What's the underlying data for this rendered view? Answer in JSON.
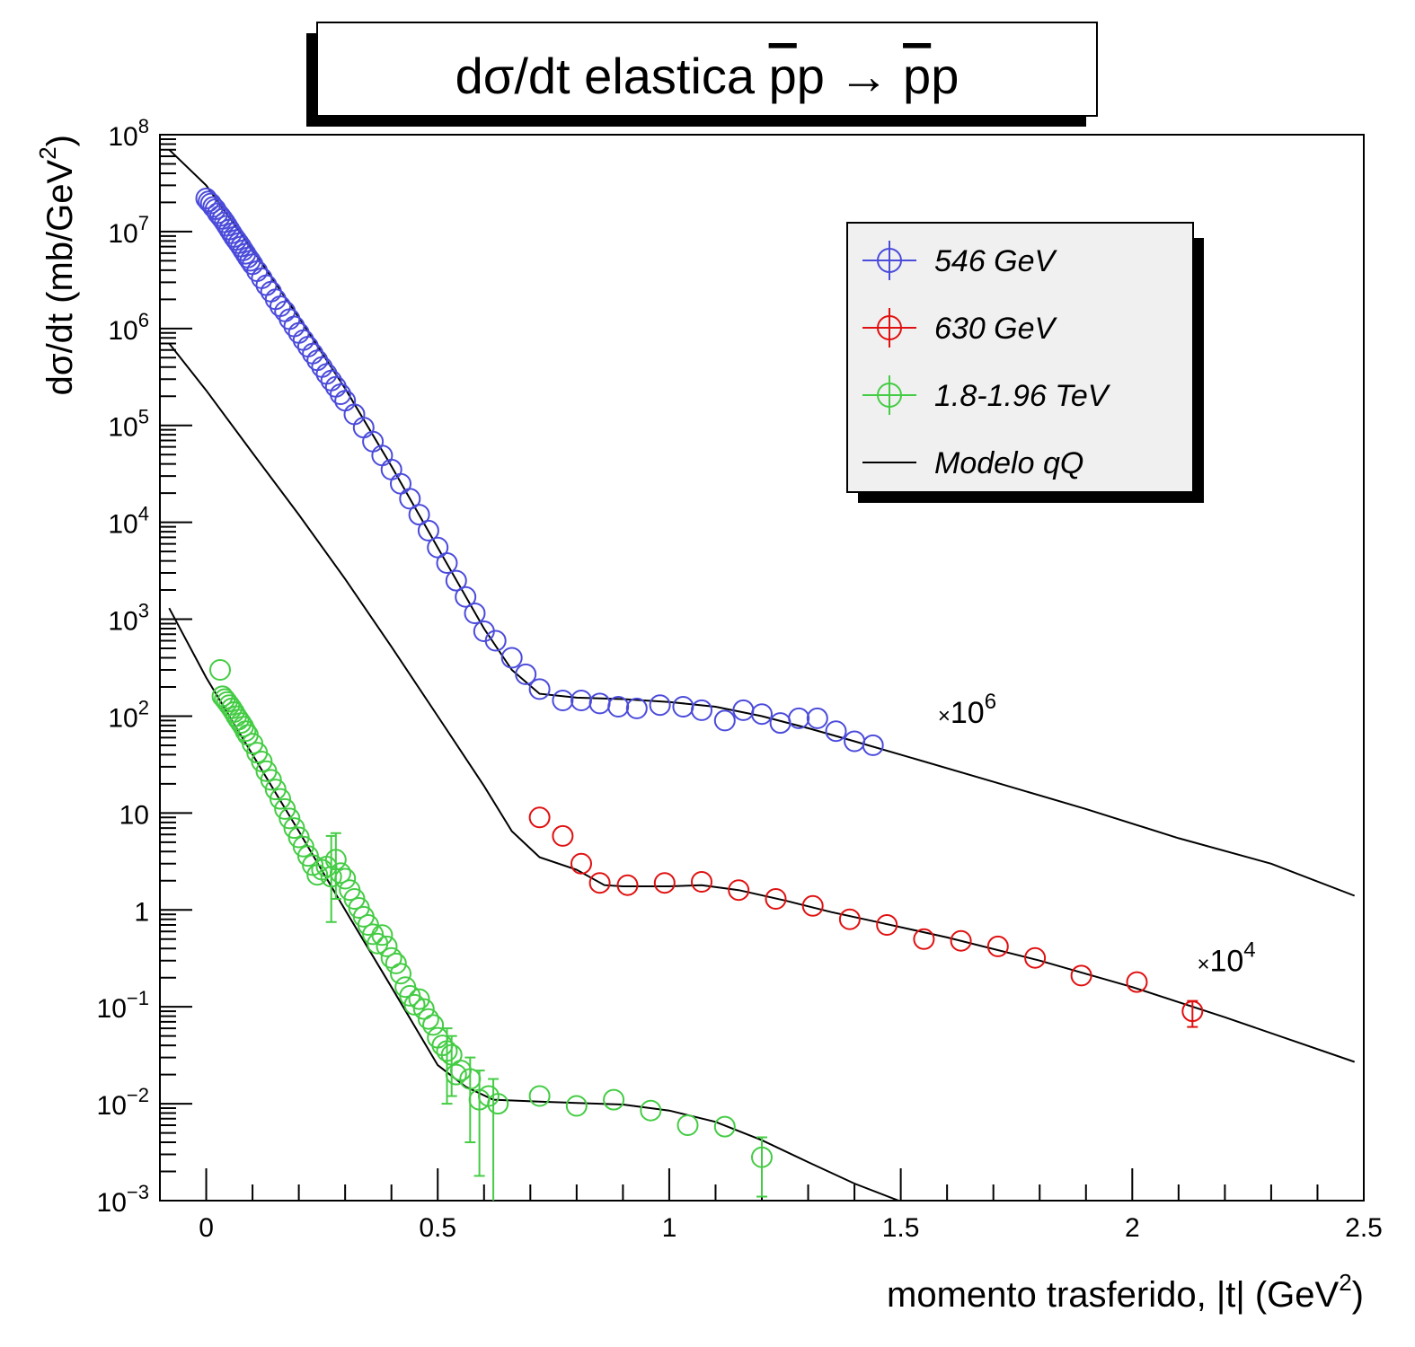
{
  "colors": {
    "series_546": "#4b4bdb",
    "series_630": "#e01010",
    "series_tev": "#44cc44",
    "model": "#000000",
    "legend_bg": "#f0f0f0"
  },
  "chart_data": {
    "type": "scatter",
    "title": "dσ/dt elastica p̄p → p̄p",
    "title_parts": {
      "prefix": "dσ/dt elastica ",
      "pbar1": "p",
      "mid1": "p → ",
      "pbar2": "p",
      "tail": "p"
    },
    "xlabel": "momento trasferido, |t| (GeV²)",
    "xlabel_parts": {
      "main": "momento trasferido, |t| (GeV",
      "sup": "2",
      "close": ")"
    },
    "ylabel": "dσ/dt (mb/GeV²)",
    "ylabel_parts": {
      "main": "dσ/dt (mb/GeV",
      "sup": "2",
      "close": ")"
    },
    "xlim": [
      -0.1,
      2.5
    ],
    "ylim": [
      0.001,
      100000000
    ],
    "yscale": "log",
    "grid": false,
    "legend_position": "top-right",
    "x_ticks": [
      "0",
      "0.5",
      "1",
      "1.5",
      "2",
      "2.5"
    ],
    "x_tick_values": [
      0,
      0.5,
      1,
      1.5,
      2,
      2.5
    ],
    "y_ticks": [
      {
        "base": "10",
        "exp": "−3",
        "value": 0.001
      },
      {
        "base": "10",
        "exp": "−2",
        "value": 0.01
      },
      {
        "base": "10",
        "exp": "−1",
        "value": 0.1
      },
      {
        "base": "1",
        "exp": "",
        "value": 1
      },
      {
        "base": "10",
        "exp": "",
        "value": 10
      },
      {
        "base": "10",
        "exp": "2",
        "value": 100
      },
      {
        "base": "10",
        "exp": "3",
        "value": 1000
      },
      {
        "base": "10",
        "exp": "4",
        "value": 10000
      },
      {
        "base": "10",
        "exp": "5",
        "value": 100000
      },
      {
        "base": "10",
        "exp": "6",
        "value": 1000000
      },
      {
        "base": "10",
        "exp": "7",
        "value": 10000000
      },
      {
        "base": "10",
        "exp": "8",
        "value": 100000000
      }
    ],
    "annotations": [
      {
        "prefix": "×",
        "base": "10",
        "exp": "6",
        "x": 1.58,
        "y": 110
      },
      {
        "prefix": "×",
        "base": "10",
        "exp": "4",
        "x": 2.14,
        "y": 0.3
      }
    ],
    "legend": [
      {
        "label": "546 GeV",
        "series": "546"
      },
      {
        "label": "630 GeV",
        "series": "630"
      },
      {
        "label": "1.8-1.96 TeV",
        "series": "tev"
      },
      {
        "label": "Modelo qQ",
        "series": "model"
      }
    ],
    "series": [
      {
        "name": "546 GeV",
        "key": "546",
        "points": [
          [
            0.0,
            22000000.0
          ],
          [
            0.005,
            20500000.0
          ],
          [
            0.01,
            19500000.0
          ],
          [
            0.015,
            18000000.0
          ],
          [
            0.02,
            17000000.0
          ],
          [
            0.025,
            15500000.0
          ],
          [
            0.03,
            14500000.0
          ],
          [
            0.035,
            13500000.0
          ],
          [
            0.04,
            12500000.0
          ],
          [
            0.045,
            11500000.0
          ],
          [
            0.05,
            10500000.0
          ],
          [
            0.055,
            9600000.0
          ],
          [
            0.06,
            8800000.0
          ],
          [
            0.065,
            8200000.0
          ],
          [
            0.07,
            7600000.0
          ],
          [
            0.075,
            7000000.0
          ],
          [
            0.08,
            6400000.0
          ],
          [
            0.085,
            5900000.0
          ],
          [
            0.09,
            5400000.0
          ],
          [
            0.095,
            5000000.0
          ],
          [
            0.1,
            4600000.0
          ],
          [
            0.11,
            3900000.0
          ],
          [
            0.12,
            3300000.0
          ],
          [
            0.13,
            2800000.0
          ],
          [
            0.14,
            2400000.0
          ],
          [
            0.15,
            2000000.0
          ],
          [
            0.16,
            1700000.0
          ],
          [
            0.17,
            1500000.0
          ],
          [
            0.18,
            1250000.0
          ],
          [
            0.19,
            1050000.0
          ],
          [
            0.2,
            900000.0
          ],
          [
            0.21,
            760000.0
          ],
          [
            0.22,
            650000.0
          ],
          [
            0.23,
            550000.0
          ],
          [
            0.24,
            470000.0
          ],
          [
            0.25,
            400000.0
          ],
          [
            0.26,
            340000.0
          ],
          [
            0.27,
            290000.0
          ],
          [
            0.28,
            250000.0
          ],
          [
            0.29,
            210000.0
          ],
          [
            0.3,
            180000.0
          ],
          [
            0.32,
            130000.0
          ],
          [
            0.34,
            95000.0
          ],
          [
            0.36,
            68000.0
          ],
          [
            0.38,
            49000.0
          ],
          [
            0.4,
            35000.0
          ],
          [
            0.42,
            25000.0
          ],
          [
            0.44,
            17500.0
          ],
          [
            0.46,
            12000.0
          ],
          [
            0.48,
            8200.0
          ],
          [
            0.5,
            5500.0
          ],
          [
            0.52,
            3800.0
          ],
          [
            0.54,
            2500.0
          ],
          [
            0.56,
            1700.0
          ],
          [
            0.58,
            1150.0
          ],
          [
            0.6,
            750.0
          ],
          [
            0.625,
            600.0
          ],
          [
            0.66,
            400.0
          ],
          [
            0.69,
            270.0
          ],
          [
            0.72,
            190.0
          ],
          [
            0.77,
            145.0
          ],
          [
            0.81,
            145.0
          ],
          [
            0.85,
            135.0
          ],
          [
            0.89,
            125.0
          ],
          [
            0.93,
            120.0
          ],
          [
            0.98,
            130.0
          ],
          [
            1.03,
            125.0
          ],
          [
            1.07,
            115.0
          ],
          [
            1.12,
            90.0
          ],
          [
            1.16,
            115.0
          ],
          [
            1.2,
            105.0
          ],
          [
            1.24,
            85.0
          ],
          [
            1.28,
            95.0
          ],
          [
            1.32,
            95.0
          ],
          [
            1.36,
            70.0
          ],
          [
            1.4,
            55.0
          ],
          [
            1.44,
            50.0
          ]
        ],
        "errors": []
      },
      {
        "name": "630 GeV",
        "key": "630",
        "points": [
          [
            0.72,
            9.0
          ],
          [
            0.77,
            5.8
          ],
          [
            0.81,
            3.0
          ],
          [
            0.85,
            1.9
          ],
          [
            0.91,
            1.8
          ],
          [
            0.99,
            1.9
          ],
          [
            1.07,
            1.95
          ],
          [
            1.15,
            1.6
          ],
          [
            1.23,
            1.3
          ],
          [
            1.31,
            1.1
          ],
          [
            1.39,
            0.8
          ],
          [
            1.47,
            0.7
          ],
          [
            1.55,
            0.5
          ],
          [
            1.63,
            0.48
          ],
          [
            1.71,
            0.42
          ],
          [
            1.79,
            0.32
          ],
          [
            1.89,
            0.21
          ],
          [
            2.01,
            0.18
          ],
          [
            2.13,
            0.09
          ]
        ],
        "errors": [
          {
            "x": 2.13,
            "lo": 0.062,
            "hi": 0.115
          }
        ]
      },
      {
        "name": "1.8-1.96 TeV",
        "key": "tev",
        "points": [
          [
            0.03,
            300
          ],
          [
            0.035,
            160
          ],
          [
            0.04,
            150
          ],
          [
            0.045,
            140
          ],
          [
            0.05,
            130
          ],
          [
            0.055,
            120
          ],
          [
            0.06,
            110
          ],
          [
            0.065,
            100
          ],
          [
            0.07,
            92
          ],
          [
            0.075,
            85
          ],
          [
            0.08,
            78
          ],
          [
            0.085,
            70
          ],
          [
            0.09,
            64
          ],
          [
            0.1,
            52
          ],
          [
            0.11,
            42
          ],
          [
            0.12,
            34
          ],
          [
            0.13,
            27
          ],
          [
            0.14,
            22
          ],
          [
            0.15,
            17.5
          ],
          [
            0.16,
            14
          ],
          [
            0.17,
            11
          ],
          [
            0.18,
            8.8
          ],
          [
            0.19,
            7.0
          ],
          [
            0.2,
            5.6
          ],
          [
            0.21,
            4.5
          ],
          [
            0.22,
            3.6
          ],
          [
            0.23,
            2.9
          ],
          [
            0.24,
            2.3
          ],
          [
            0.25,
            2.6
          ],
          [
            0.26,
            2.8
          ],
          [
            0.27,
            2.2
          ],
          [
            0.28,
            3.3
          ],
          [
            0.29,
            2.4
          ],
          [
            0.3,
            2.1
          ],
          [
            0.31,
            1.6
          ],
          [
            0.32,
            1.3
          ],
          [
            0.33,
            1.05
          ],
          [
            0.34,
            0.85
          ],
          [
            0.35,
            0.7
          ],
          [
            0.36,
            0.56
          ],
          [
            0.37,
            0.45
          ],
          [
            0.38,
            0.55
          ],
          [
            0.39,
            0.42
          ],
          [
            0.4,
            0.32
          ],
          [
            0.41,
            0.28
          ],
          [
            0.42,
            0.22
          ],
          [
            0.43,
            0.16
          ],
          [
            0.44,
            0.13
          ],
          [
            0.45,
            0.105
          ],
          [
            0.46,
            0.12
          ],
          [
            0.47,
            0.095
          ],
          [
            0.48,
            0.075
          ],
          [
            0.49,
            0.065
          ],
          [
            0.5,
            0.048
          ],
          [
            0.51,
            0.04
          ],
          [
            0.52,
            0.035
          ],
          [
            0.53,
            0.032
          ],
          [
            0.54,
            0.02
          ],
          [
            0.55,
            0.022
          ],
          [
            0.57,
            0.018
          ],
          [
            0.59,
            0.011
          ],
          [
            0.61,
            0.012
          ],
          [
            0.63,
            0.01
          ],
          [
            0.72,
            0.012
          ],
          [
            0.8,
            0.0095
          ],
          [
            0.88,
            0.011
          ],
          [
            0.96,
            0.0085
          ],
          [
            1.04,
            0.006
          ],
          [
            1.12,
            0.0058
          ],
          [
            1.2,
            0.0028
          ]
        ],
        "errors": [
          {
            "x": 0.27,
            "lo": 0.75,
            "hi": 5.8
          },
          {
            "x": 0.28,
            "lo": 1.3,
            "hi": 6.2
          },
          {
            "x": 0.52,
            "lo": 0.01,
            "hi": 0.06
          },
          {
            "x": 0.53,
            "lo": 0.012,
            "hi": 0.05
          },
          {
            "x": 0.57,
            "lo": 0.004,
            "hi": 0.03
          },
          {
            "x": 0.59,
            "lo": 0.0018,
            "hi": 0.022
          },
          {
            "x": 0.62,
            "lo": 0.0009,
            "hi": 0.018
          },
          {
            "x": 1.2,
            "lo": 0.0011,
            "hi": 0.0045
          }
        ]
      },
      {
        "name": "Modelo qQ",
        "key": "model",
        "lines": [
          [
            [
              -0.08,
              70000000.0
            ],
            [
              0.0,
              30000000.0
            ],
            [
              0.1,
              6500000.0
            ],
            [
              0.2,
              1300000.0
            ],
            [
              0.3,
              240000.0
            ],
            [
              0.4,
              38000.0
            ],
            [
              0.5,
              5500.0
            ],
            [
              0.6,
              800.0
            ],
            [
              0.66,
              300.0
            ],
            [
              0.72,
              170.0
            ],
            [
              0.8,
              155.0
            ],
            [
              0.9,
              150.0
            ],
            [
              1.0,
              140.0
            ],
            [
              1.1,
              125.0
            ],
            [
              1.2,
              100.0
            ],
            [
              1.3,
              75.0
            ],
            [
              1.4,
              55.0
            ],
            [
              1.5,
              40.0
            ],
            [
              1.7,
              21.0
            ],
            [
              1.9,
              11.0
            ],
            [
              2.1,
              5.5
            ],
            [
              2.3,
              3.0
            ],
            [
              2.48,
              1.4
            ]
          ],
          [
            [
              -0.08,
              700000.0
            ],
            [
              0.0,
              230000.0
            ],
            [
              0.1,
              52000.0
            ],
            [
              0.2,
              12000.0
            ],
            [
              0.3,
              2600.0
            ],
            [
              0.4,
              520.0
            ],
            [
              0.5,
              100.0
            ],
            [
              0.6,
              19.0
            ],
            [
              0.66,
              6.5
            ],
            [
              0.72,
              3.5
            ],
            [
              0.8,
              2.6
            ],
            [
              0.86,
              1.8
            ],
            [
              0.9,
              1.75
            ],
            [
              1.0,
              1.75
            ],
            [
              1.07,
              1.8
            ],
            [
              1.15,
              1.6
            ],
            [
              1.25,
              1.25
            ],
            [
              1.35,
              0.95
            ],
            [
              1.45,
              0.75
            ],
            [
              1.6,
              0.52
            ],
            [
              1.8,
              0.3
            ],
            [
              2.0,
              0.16
            ],
            [
              2.2,
              0.078
            ],
            [
              2.48,
              0.027
            ]
          ],
          [
            [
              -0.08,
              1300.0
            ],
            [
              0.0,
              250.0
            ],
            [
              0.1,
              40.0
            ],
            [
              0.2,
              6.5
            ],
            [
              0.3,
              1.0
            ],
            [
              0.4,
              0.16
            ],
            [
              0.5,
              0.025
            ],
            [
              0.56,
              0.015
            ],
            [
              0.62,
              0.011
            ],
            [
              0.72,
              0.0105
            ],
            [
              0.8,
              0.0102
            ],
            [
              0.9,
              0.0098
            ],
            [
              1.0,
              0.0085
            ],
            [
              1.1,
              0.0065
            ],
            [
              1.2,
              0.0042
            ],
            [
              1.3,
              0.0025
            ],
            [
              1.4,
              0.0015
            ],
            [
              1.5,
              0.00098
            ]
          ]
        ]
      }
    ]
  }
}
